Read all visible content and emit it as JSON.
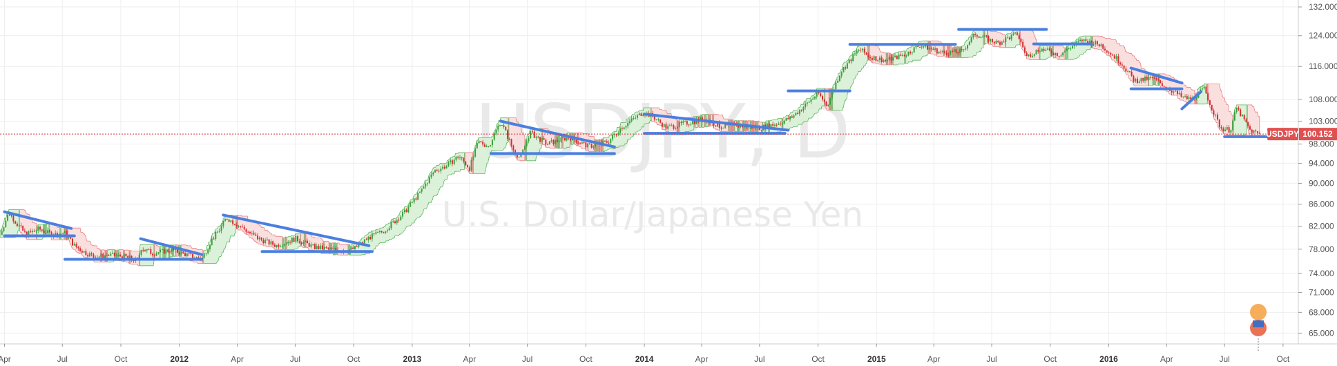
{
  "chart_data": {
    "type": "line",
    "title": "USDJPY, D",
    "subtitle": "U.S. Dollar/Japanese Yen",
    "symbol": "USDJPY",
    "last_price": 100.152,
    "last_price_label": "100.152",
    "x_range": [
      "2011-03-25",
      "2016-10-25"
    ],
    "y_range_log": [
      63.5,
      134
    ],
    "y_scale": "log",
    "grid": true,
    "y_ticks": [
      {
        "value": 132.0,
        "label": "132.000"
      },
      {
        "value": 124.0,
        "label": "124.000"
      },
      {
        "value": 116.0,
        "label": "116.000"
      },
      {
        "value": 108.0,
        "label": "108.000"
      },
      {
        "value": 103.0,
        "label": "103.000"
      },
      {
        "value": 98.0,
        "label": "98.000"
      },
      {
        "value": 94.0,
        "label": "94.000"
      },
      {
        "value": 90.0,
        "label": "90.000"
      },
      {
        "value": 86.0,
        "label": "86.000"
      },
      {
        "value": 82.0,
        "label": "82.000"
      },
      {
        "value": 78.0,
        "label": "78.000"
      },
      {
        "value": 74.0,
        "label": "74.000"
      },
      {
        "value": 71.0,
        "label": "71.000"
      },
      {
        "value": 68.0,
        "label": "68.000"
      },
      {
        "value": 65.0,
        "label": "65.000"
      }
    ],
    "x_ticks": [
      {
        "date": "2011-04-01",
        "label": "Apr",
        "year": false
      },
      {
        "date": "2011-07-01",
        "label": "Jul",
        "year": false
      },
      {
        "date": "2011-10-01",
        "label": "Oct",
        "year": false
      },
      {
        "date": "2012-01-01",
        "label": "2012",
        "year": true
      },
      {
        "date": "2012-04-01",
        "label": "Apr",
        "year": false
      },
      {
        "date": "2012-07-01",
        "label": "Jul",
        "year": false
      },
      {
        "date": "2012-10-01",
        "label": "Oct",
        "year": false
      },
      {
        "date": "2013-01-01",
        "label": "2013",
        "year": true
      },
      {
        "date": "2013-04-01",
        "label": "Apr",
        "year": false
      },
      {
        "date": "2013-07-01",
        "label": "Jul",
        "year": false
      },
      {
        "date": "2013-10-01",
        "label": "Oct",
        "year": false
      },
      {
        "date": "2014-01-01",
        "label": "2014",
        "year": true
      },
      {
        "date": "2014-04-01",
        "label": "Apr",
        "year": false
      },
      {
        "date": "2014-07-01",
        "label": "Jul",
        "year": false
      },
      {
        "date": "2014-10-01",
        "label": "Oct",
        "year": false
      },
      {
        "date": "2015-01-01",
        "label": "2015",
        "year": true
      },
      {
        "date": "2015-04-01",
        "label": "Apr",
        "year": false
      },
      {
        "date": "2015-07-01",
        "label": "Jul",
        "year": false
      },
      {
        "date": "2015-10-01",
        "label": "Oct",
        "year": false
      },
      {
        "date": "2016-01-01",
        "label": "2016",
        "year": true
      },
      {
        "date": "2016-04-01",
        "label": "Apr",
        "year": false
      },
      {
        "date": "2016-07-01",
        "label": "Jul",
        "year": false
      },
      {
        "date": "2016-10-01",
        "label": "Oct",
        "year": false
      }
    ],
    "price_path": [
      [
        "2011-03-25",
        80.5
      ],
      [
        "2011-04-08",
        84.5
      ],
      [
        "2011-04-20",
        82.5
      ],
      [
        "2011-05-05",
        80.5
      ],
      [
        "2011-05-25",
        81.5
      ],
      [
        "2011-06-15",
        80.5
      ],
      [
        "2011-07-05",
        80.8
      ],
      [
        "2011-07-20",
        78.6
      ],
      [
        "2011-08-05",
        77.5
      ],
      [
        "2011-08-20",
        76.7
      ],
      [
        "2011-09-10",
        77.0
      ],
      [
        "2011-10-05",
        76.8
      ],
      [
        "2011-10-28",
        76.0
      ],
      [
        "2011-11-01",
        78.3
      ],
      [
        "2011-11-20",
        77.3
      ],
      [
        "2011-12-20",
        77.9
      ],
      [
        "2012-01-20",
        76.8
      ],
      [
        "2012-02-05",
        76.3
      ],
      [
        "2012-02-20",
        79.5
      ],
      [
        "2012-03-05",
        81.5
      ],
      [
        "2012-03-15",
        83.5
      ],
      [
        "2012-04-05",
        82.0
      ],
      [
        "2012-05-01",
        80.0
      ],
      [
        "2012-06-01",
        78.6
      ],
      [
        "2012-07-01",
        79.8
      ],
      [
        "2012-08-01",
        78.3
      ],
      [
        "2012-09-10",
        77.8
      ],
      [
        "2012-10-01",
        78.0
      ],
      [
        "2012-10-25",
        80.0
      ],
      [
        "2012-11-15",
        81.0
      ],
      [
        "2012-12-01",
        82.5
      ],
      [
        "2012-12-20",
        84.5
      ],
      [
        "2013-01-15",
        88.5
      ],
      [
        "2013-02-05",
        92.5
      ],
      [
        "2013-02-25",
        93.5
      ],
      [
        "2013-03-15",
        95.5
      ],
      [
        "2013-04-01",
        93.0
      ],
      [
        "2013-04-15",
        98.5
      ],
      [
        "2013-05-01",
        97.5
      ],
      [
        "2013-05-20",
        103.0
      ],
      [
        "2013-06-10",
        96.5
      ],
      [
        "2013-06-20",
        95.0
      ],
      [
        "2013-07-05",
        100.5
      ],
      [
        "2013-08-01",
        98.0
      ],
      [
        "2013-09-05",
        99.5
      ],
      [
        "2013-10-05",
        97.5
      ],
      [
        "2013-11-05",
        98.5
      ],
      [
        "2013-11-25",
        101.5
      ],
      [
        "2013-12-30",
        105.0
      ],
      [
        "2014-01-15",
        104.0
      ],
      [
        "2014-02-05",
        101.5
      ],
      [
        "2014-03-05",
        102.5
      ],
      [
        "2014-04-05",
        103.5
      ],
      [
        "2014-05-01",
        101.8
      ],
      [
        "2014-06-01",
        102.0
      ],
      [
        "2014-07-01",
        101.5
      ],
      [
        "2014-08-01",
        102.6
      ],
      [
        "2014-08-20",
        103.8
      ],
      [
        "2014-09-10",
        106.5
      ],
      [
        "2014-10-01",
        109.5
      ],
      [
        "2014-10-15",
        106.5
      ],
      [
        "2014-11-05",
        114.5
      ],
      [
        "2014-12-05",
        120.5
      ],
      [
        "2014-12-20",
        118.5
      ],
      [
        "2015-01-15",
        117.5
      ],
      [
        "2015-02-15",
        119.0
      ],
      [
        "2015-03-10",
        121.5
      ],
      [
        "2015-04-15",
        119.5
      ],
      [
        "2015-05-15",
        119.8
      ],
      [
        "2015-06-05",
        124.5
      ],
      [
        "2015-07-10",
        122.0
      ],
      [
        "2015-08-10",
        124.5
      ],
      [
        "2015-08-25",
        118.5
      ],
      [
        "2015-09-15",
        120.5
      ],
      [
        "2015-10-15",
        119.0
      ],
      [
        "2015-11-20",
        122.8
      ],
      [
        "2015-12-20",
        121.5
      ],
      [
        "2016-01-20",
        117.0
      ],
      [
        "2016-02-10",
        112.5
      ],
      [
        "2016-03-10",
        113.0
      ],
      [
        "2016-04-05",
        110.5
      ],
      [
        "2016-04-25",
        108.5
      ],
      [
        "2016-05-10",
        108.0
      ],
      [
        "2016-05-30",
        110.5
      ],
      [
        "2016-06-15",
        104.5
      ],
      [
        "2016-06-25",
        101.5
      ],
      [
        "2016-07-10",
        101.0
      ],
      [
        "2016-07-20",
        106.0
      ],
      [
        "2016-08-10",
        101.0
      ],
      [
        "2016-08-25",
        100.152
      ]
    ],
    "trendlines": [
      {
        "from": [
          "2011-04-01",
          84.6
        ],
        "to": [
          "2011-07-15",
          81.6
        ]
      },
      {
        "from": [
          "2011-04-01",
          80.3
        ],
        "to": [
          "2011-07-20",
          80.3
        ]
      },
      {
        "from": [
          "2011-07-05",
          76.3
        ],
        "to": [
          "2012-02-05",
          76.3
        ]
      },
      {
        "from": [
          "2011-11-01",
          79.8
        ],
        "to": [
          "2012-02-05",
          77.1
        ]
      },
      {
        "from": [
          "2012-03-10",
          84.0
        ],
        "to": [
          "2012-10-25",
          78.6
        ]
      },
      {
        "from": [
          "2012-05-10",
          77.6
        ],
        "to": [
          "2012-10-30",
          77.6
        ]
      },
      {
        "from": [
          "2013-05-05",
          96.0
        ],
        "to": [
          "2013-11-15",
          96.0
        ]
      },
      {
        "from": [
          "2013-05-20",
          103.0
        ],
        "to": [
          "2013-11-15",
          97.4
        ]
      },
      {
        "from": [
          "2014-01-01",
          104.6
        ],
        "to": [
          "2014-08-15",
          101.0
        ]
      },
      {
        "from": [
          "2014-01-01",
          100.3
        ],
        "to": [
          "2014-08-10",
          100.3
        ]
      },
      {
        "from": [
          "2014-08-15",
          110.0
        ],
        "to": [
          "2014-11-20",
          110.0
        ]
      },
      {
        "from": [
          "2014-11-20",
          121.7
        ],
        "to": [
          "2015-05-05",
          121.7
        ]
      },
      {
        "from": [
          "2015-05-10",
          125.7
        ],
        "to": [
          "2015-09-25",
          125.7
        ]
      },
      {
        "from": [
          "2015-09-05",
          121.8
        ],
        "to": [
          "2015-12-05",
          121.8
        ]
      },
      {
        "from": [
          "2016-02-05",
          115.6
        ],
        "to": [
          "2016-04-25",
          111.9
        ]
      },
      {
        "from": [
          "2016-02-05",
          110.5
        ],
        "to": [
          "2016-04-25",
          110.5
        ]
      },
      {
        "from": [
          "2016-04-25",
          105.8
        ],
        "to": [
          "2016-05-25",
          109.8
        ]
      },
      {
        "from": [
          "2016-07-01",
          99.6
        ],
        "to": [
          "2016-09-05",
          99.6
        ]
      }
    ]
  },
  "colors": {
    "grid": "#eeeeee",
    "axis_text": "#555555",
    "candle_up": "#3c9f3c",
    "candle_down": "#d03030",
    "cloud_up_fill": "#d9f0d5",
    "cloud_up_line": "#4caf50",
    "cloud_down_fill": "#fadcdc",
    "cloud_down_line": "#e57373",
    "trendline": "#4a7fe0",
    "price_line": "#d03030",
    "price_tag": "#e05050",
    "watermark": "#e9e9e9"
  },
  "watermark": {
    "symbol": "USDJPY, D",
    "description": "U.S. Dollar/Japanese Yen"
  },
  "logo": {
    "icon": "tradingview-user-logo-icon"
  }
}
